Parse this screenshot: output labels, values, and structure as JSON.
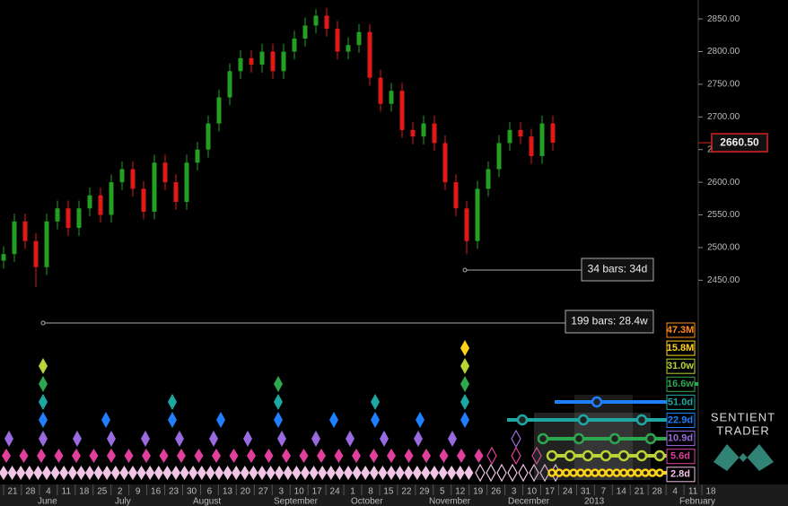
{
  "chart_data": {
    "type": "candlestick",
    "up_color": "#22a022",
    "down_color": "#e01818",
    "open": [
      2480,
      2490,
      2540,
      2510,
      2470,
      2540,
      2560,
      2530,
      2560,
      2580,
      2550,
      2600,
      2620,
      2590,
      2555,
      2630,
      2600,
      2570,
      2630,
      2650,
      2690,
      2730,
      2770,
      2790,
      2780,
      2800,
      2770,
      2800,
      2820,
      2840,
      2855,
      2835,
      2800,
      2810,
      2830,
      2760,
      2720,
      2740,
      2680,
      2670,
      2690,
      2660,
      2600,
      2560,
      2510,
      2590,
      2620,
      2660,
      2680,
      2670,
      2640,
      2690
    ],
    "high": [
      2502,
      2552,
      2552,
      2522,
      2552,
      2572,
      2572,
      2572,
      2592,
      2592,
      2612,
      2632,
      2632,
      2602,
      2642,
      2642,
      2612,
      2642,
      2662,
      2702,
      2742,
      2782,
      2802,
      2802,
      2812,
      2812,
      2812,
      2832,
      2852,
      2865,
      2867,
      2847,
      2822,
      2842,
      2842,
      2772,
      2752,
      2752,
      2692,
      2702,
      2702,
      2672,
      2612,
      2572,
      2602,
      2632,
      2672,
      2692,
      2692,
      2682,
      2702,
      2702
    ],
    "low": [
      2468,
      2478,
      2498,
      2440,
      2458,
      2528,
      2518,
      2518,
      2548,
      2538,
      2538,
      2588,
      2578,
      2543,
      2543,
      2588,
      2558,
      2558,
      2618,
      2638,
      2678,
      2718,
      2758,
      2768,
      2768,
      2758,
      2758,
      2788,
      2808,
      2828,
      2823,
      2788,
      2788,
      2798,
      2748,
      2708,
      2708,
      2668,
      2658,
      2658,
      2648,
      2588,
      2548,
      2490,
      2498,
      2578,
      2608,
      2648,
      2658,
      2628,
      2628,
      2648
    ],
    "close": [
      2490,
      2540,
      2510,
      2470,
      2540,
      2560,
      2530,
      2560,
      2580,
      2550,
      2600,
      2620,
      2590,
      2555,
      2630,
      2600,
      2570,
      2630,
      2650,
      2690,
      2730,
      2770,
      2790,
      2780,
      2800,
      2770,
      2800,
      2820,
      2840,
      2855,
      2835,
      2800,
      2810,
      2830,
      2760,
      2720,
      2740,
      2680,
      2670,
      2690,
      2660,
      2600,
      2560,
      2510,
      2590,
      2620,
      2660,
      2680,
      2670,
      2640,
      2690,
      2660.5
    ],
    "last_price": {
      "value": 2660.5,
      "label": "2660.50"
    },
    "ylim": [
      2412,
      2879
    ],
    "yticks": [
      {
        "value": 2450,
        "label": "2450.00"
      },
      {
        "value": 2500,
        "label": "2500.00"
      },
      {
        "value": 2550,
        "label": "2550.00"
      },
      {
        "value": 2600,
        "label": "2600.00"
      },
      {
        "value": 2650,
        "label": "2650.00"
      },
      {
        "value": 2700,
        "label": "2700.00"
      },
      {
        "value": 2750,
        "label": "2750.00"
      },
      {
        "value": 2800,
        "label": "2800.00"
      },
      {
        "value": 2850,
        "label": "2850.00"
      }
    ],
    "x_day_labels": [
      "21",
      "28",
      "4",
      "11",
      "18",
      "25",
      "2",
      "9",
      "16",
      "23",
      "30",
      "6",
      "13",
      "20",
      "27",
      "3",
      "10",
      "17",
      "24",
      "1",
      "8",
      "15",
      "22",
      "29",
      "5",
      "12",
      "19",
      "26",
      "3",
      "10",
      "17",
      "24",
      "31",
      "7",
      "14",
      "21",
      "28",
      "4",
      "11",
      "18"
    ],
    "x_month_labels": [
      "June",
      "July",
      "August",
      "September",
      "October",
      "November",
      "December",
      "2013",
      "February"
    ],
    "annotations": [
      "34 bars: 34d",
      "199 bars: 28.4w"
    ],
    "cycles": [
      {
        "label": "47.3M",
        "color": "#ff8c1a"
      },
      {
        "label": "15.8M",
        "color": "#ffd21a"
      },
      {
        "label": "31.0w",
        "color": "#b8d436"
      },
      {
        "label": "16.6w",
        "color": "#2ea84f"
      },
      {
        "label": "51.0d",
        "color": "#1ea8a2"
      },
      {
        "label": "22.9d",
        "color": "#1e80ff"
      },
      {
        "label": "10.9d",
        "color": "#9a6be0"
      },
      {
        "label": "5.6d",
        "color": "#e0409c"
      },
      {
        "label": "2.8d",
        "color": "#f0c4e4"
      }
    ]
  },
  "logo": {
    "line1": "SENTIENT",
    "line2": "TRADER"
  }
}
